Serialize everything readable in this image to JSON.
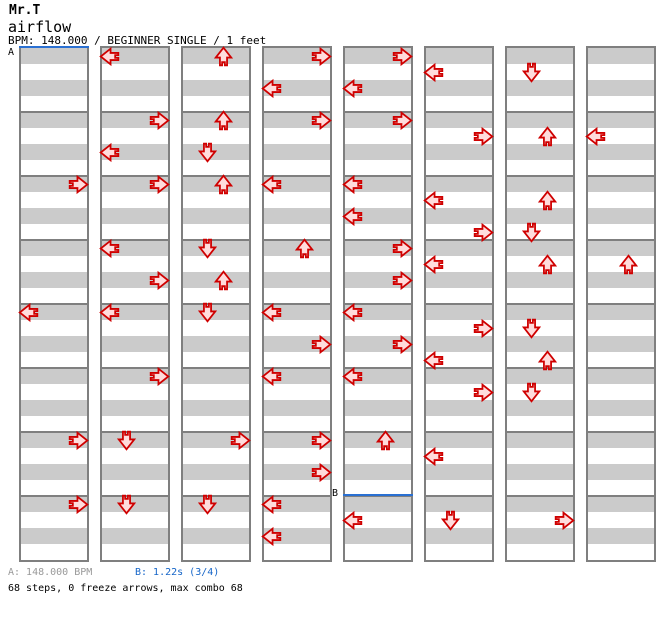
{
  "header": {
    "artist": "Mr.T",
    "title": "airflow",
    "details": "BPM: 148.000 / BEGINNER SINGLE / 1 feet"
  },
  "footer": {
    "marker_a_info": "A: 148.000 BPM",
    "marker_b_info": "B: 1.22s (3/4)",
    "summary": "68 steps, 0 freeze arrows, max combo 68"
  },
  "colors": {
    "stripe": "#cbcbcb",
    "border": "#7f7f7f",
    "marker_blue": "#2a70d2",
    "footer_gray": "#999999",
    "footer_blue": "#1565c8",
    "arrow_stroke": "#cf0000",
    "arrow_fill": "#ffdcdc"
  },
  "chart": {
    "columns": 8,
    "rows_per_column": 32,
    "rows_per_measure": 4,
    "markers": [
      {
        "label": "A",
        "col": 0,
        "row": 0,
        "label_dy": 1
      },
      {
        "label": "B",
        "col": 4,
        "row": 28,
        "label_dy": -6
      }
    ],
    "notes": [
      [
        0,
        8,
        "right"
      ],
      [
        0,
        16,
        "left"
      ],
      [
        0,
        24,
        "right"
      ],
      [
        0,
        28,
        "right"
      ],
      [
        1,
        0,
        "left"
      ],
      [
        1,
        4,
        "right"
      ],
      [
        1,
        6,
        "left"
      ],
      [
        1,
        8,
        "right"
      ],
      [
        1,
        12,
        "left"
      ],
      [
        1,
        14,
        "right"
      ],
      [
        1,
        16,
        "left"
      ],
      [
        1,
        20,
        "right"
      ],
      [
        1,
        24,
        "down"
      ],
      [
        1,
        28,
        "down"
      ],
      [
        2,
        0,
        "up"
      ],
      [
        2,
        4,
        "up"
      ],
      [
        2,
        6,
        "down"
      ],
      [
        2,
        8,
        "up"
      ],
      [
        2,
        12,
        "down"
      ],
      [
        2,
        14,
        "up"
      ],
      [
        2,
        16,
        "down"
      ],
      [
        2,
        24,
        "right"
      ],
      [
        2,
        28,
        "down"
      ],
      [
        3,
        0,
        "right"
      ],
      [
        3,
        2,
        "left"
      ],
      [
        3,
        4,
        "right"
      ],
      [
        3,
        8,
        "left"
      ],
      [
        3,
        12,
        "up"
      ],
      [
        3,
        16,
        "left"
      ],
      [
        3,
        18,
        "right"
      ],
      [
        3,
        20,
        "left"
      ],
      [
        3,
        24,
        "right"
      ],
      [
        3,
        26,
        "right"
      ],
      [
        3,
        28,
        "left"
      ],
      [
        3,
        30,
        "left"
      ],
      [
        4,
        0,
        "right"
      ],
      [
        4,
        2,
        "left"
      ],
      [
        4,
        4,
        "right"
      ],
      [
        4,
        8,
        "left"
      ],
      [
        4,
        10,
        "left"
      ],
      [
        4,
        12,
        "right"
      ],
      [
        4,
        14,
        "right"
      ],
      [
        4,
        16,
        "left"
      ],
      [
        4,
        18,
        "right"
      ],
      [
        4,
        20,
        "left"
      ],
      [
        4,
        24,
        "up"
      ],
      [
        4,
        29,
        "left"
      ],
      [
        5,
        1,
        "left"
      ],
      [
        5,
        5,
        "right"
      ],
      [
        5,
        9,
        "left"
      ],
      [
        5,
        11,
        "right"
      ],
      [
        5,
        13,
        "left"
      ],
      [
        5,
        17,
        "right"
      ],
      [
        5,
        19,
        "left"
      ],
      [
        5,
        21,
        "right"
      ],
      [
        5,
        25,
        "left"
      ],
      [
        5,
        29,
        "down"
      ],
      [
        6,
        1,
        "down"
      ],
      [
        6,
        5,
        "up"
      ],
      [
        6,
        9,
        "up"
      ],
      [
        6,
        11,
        "down"
      ],
      [
        6,
        13,
        "up"
      ],
      [
        6,
        17,
        "down"
      ],
      [
        6,
        19,
        "up"
      ],
      [
        6,
        21,
        "down"
      ],
      [
        6,
        29,
        "right"
      ],
      [
        7,
        5,
        "left"
      ],
      [
        7,
        13,
        "up"
      ]
    ]
  }
}
